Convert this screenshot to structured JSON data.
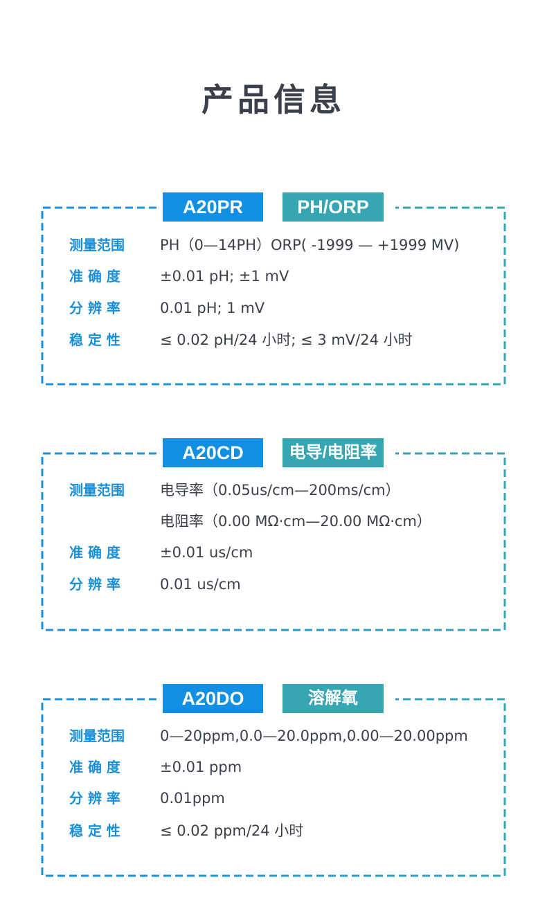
{
  "title": "产品信息",
  "colors": {
    "model_badge": "#1190e3",
    "type_badge": "#36a6b3",
    "label": "#1a8fd8",
    "border_start": "#1a8fe0",
    "border_end": "#36a6b3"
  },
  "products": [
    {
      "model": "A20PR",
      "type": "PH/ORP",
      "rows": [
        {
          "label": "测量范围",
          "value": "PH（0—14PH）ORP( -1999 — +1999 MV)"
        },
        {
          "label": "准 确 度",
          "value": "±0.01 pH; ±1 mV"
        },
        {
          "label": "分 辨 率",
          "value": "0.01 pH; 1 mV"
        },
        {
          "label": "稳 定 性",
          "value": "≤ 0.02 pH/24 小时; ≤ 3 mV/24 小时"
        }
      ]
    },
    {
      "model": "A20CD",
      "type": "电导/电阻率",
      "rows": [
        {
          "label": "测量范围",
          "value": "电导率（0.05us/cm—200ms/cm）"
        },
        {
          "label": "",
          "value": "电阻率（0.00 MΩ·cm—20.00 MΩ·cm）"
        },
        {
          "label": "准 确 度",
          "value": "±0.01 us/cm"
        },
        {
          "label": "分 辨 率",
          "value": "0.01 us/cm"
        }
      ]
    },
    {
      "model": "A20DO",
      "type": "溶解氧",
      "rows": [
        {
          "label": "测量范围",
          "value": "0—20ppm,0.0—20.0ppm,0.00—20.00ppm"
        },
        {
          "label": "准 确 度",
          "value": "±0.01 ppm"
        },
        {
          "label": "分 辨 率",
          "value": "0.01ppm"
        },
        {
          "label": "稳 定 性",
          "value": "≤ 0.02 ppm/24 小时"
        }
      ]
    }
  ]
}
